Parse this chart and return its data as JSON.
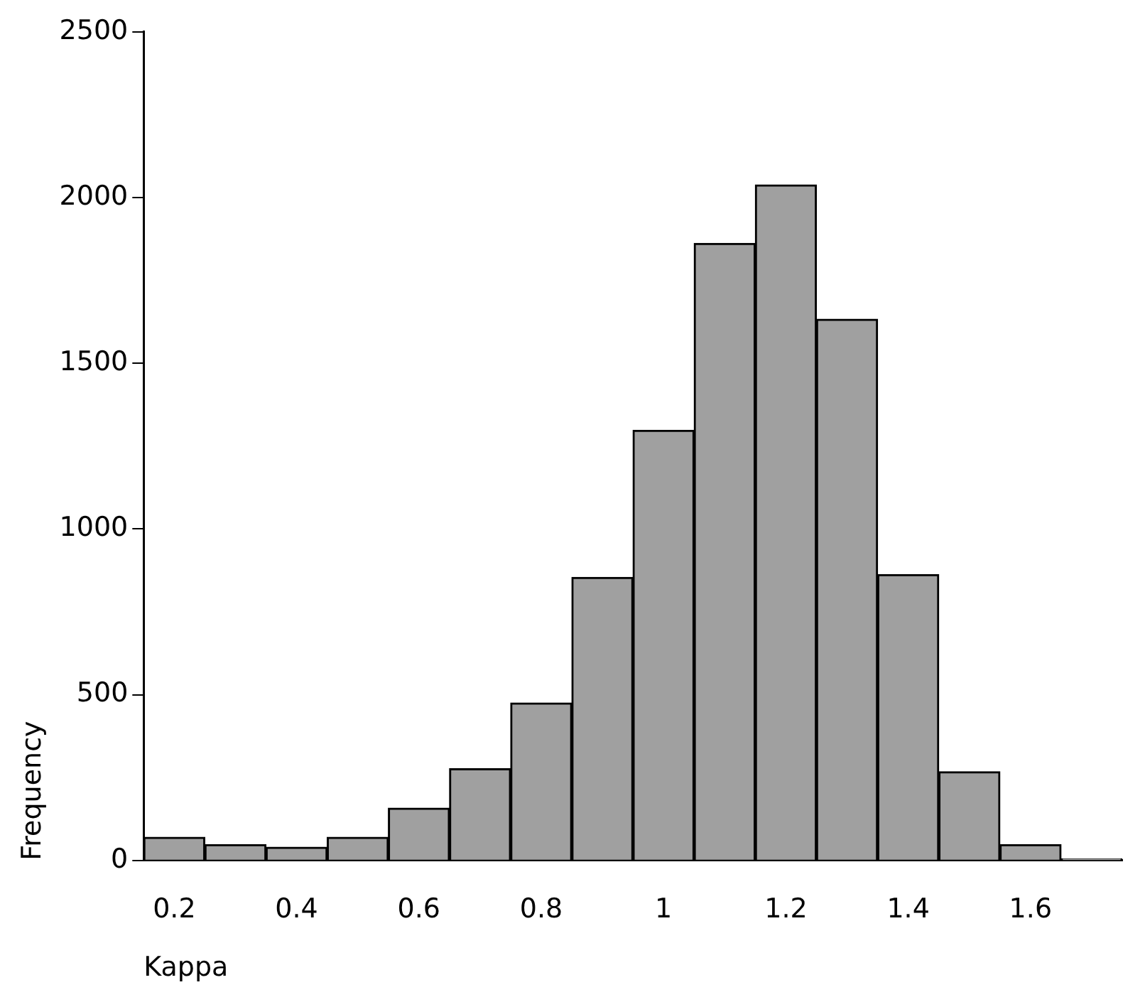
{
  "chart_data": {
    "type": "bar",
    "xlabel": "Kappa",
    "ylabel": "Frequency",
    "categories": [
      "0.2",
      null,
      "0.4",
      null,
      "0.6",
      null,
      "0.8",
      null,
      "1",
      null,
      "1.2",
      null,
      "1.4",
      null,
      "1.6",
      null
    ],
    "values": [
      70,
      48,
      40,
      70,
      158,
      277,
      475,
      854,
      1298,
      1862,
      2038,
      1633,
      863,
      268,
      48,
      5
    ],
    "color": "#a0a0a0",
    "ylim": [
      0,
      2500
    ],
    "yticks": [
      0,
      500,
      1000,
      1500,
      2000,
      2500
    ],
    "grid": false,
    "legend": false
  }
}
